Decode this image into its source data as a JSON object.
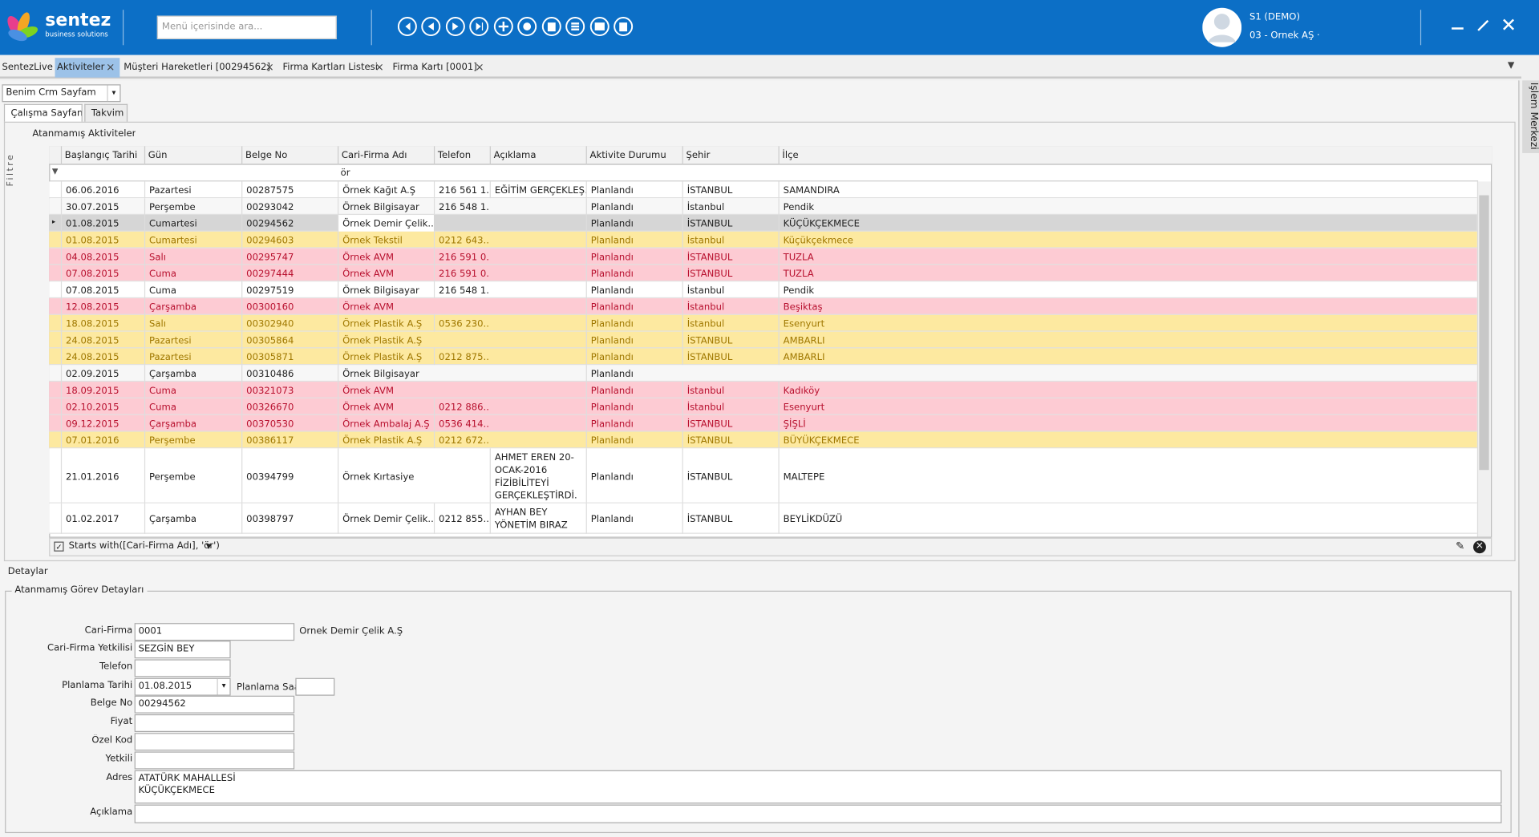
{
  "header": {
    "logo": "sentez",
    "logo_sub": "business solutions",
    "search_placeholder": "Menü içerisinde ara...",
    "user": "S1 (DEMO)",
    "company": "03 - Örnek AŞ ·"
  },
  "tabs": [
    {
      "label": "SentezLive"
    },
    {
      "label": "Aktiviteler",
      "active": true
    },
    {
      "label": "Müşteri Hareketleri [00294562]"
    },
    {
      "label": "Firma Kartları Listesi"
    },
    {
      "label": "Firma Kartı [0001]"
    }
  ],
  "side_panel": "İşlem Merkezi",
  "page_selector": "Benim Crm Sayfam",
  "sub_tabs": [
    {
      "label": "Çalışma Sayfam",
      "active": true
    },
    {
      "label": "Takvim"
    }
  ],
  "filter_panel": "Filtre",
  "grid": {
    "title": "Atanmamış Aktiviteler",
    "columns": [
      "Başlangıç Tarihi",
      "Gün",
      "Belge No",
      "Cari-Firma Adı",
      "Telefon",
      "Açıklama",
      "Aktivite Durumu",
      "Şehir",
      "İlçe"
    ],
    "filter_value": "ör",
    "rows": [
      {
        "cells": [
          "06.06.2016",
          "Pazartesi",
          "00287575",
          "Örnek Kağıt A.Ş",
          "216 561 1...",
          "EĞİTİM GERÇEKLEŞ...",
          "Planlandı",
          "İSTANBUL",
          "SAMANDIRA"
        ],
        "color": "#ffffff",
        "text_color": "#222222"
      },
      {
        "cells": [
          "30.07.2015",
          "Perşembe",
          "00293042",
          "Örnek Bilgisayar",
          "216 548 1...",
          null,
          "Planlandı",
          "İstanbul",
          "Pendik"
        ],
        "color": "#f7f7f7",
        "text_color": "#222222"
      },
      {
        "cells": [
          "01.08.2015",
          "Cumartesi",
          "00294562",
          "Örnek Demir Çelik...",
          null,
          null,
          "Planlandı",
          "İSTANBUL",
          "KÜÇÜKÇEKMECE"
        ],
        "color": "#d6d6d6",
        "text_color": "#222222",
        "selected": true
      },
      {
        "cells": [
          "01.08.2015",
          "Cumartesi",
          "00294603",
          "Örnek Tekstil",
          "0212 643...",
          null,
          "Planlandı",
          "İstanbul",
          "Küçükçekmece"
        ],
        "color": "#fde9a0",
        "text_color": "#a07800"
      },
      {
        "cells": [
          "04.08.2015",
          "Salı",
          "00295747",
          "Örnek AVM",
          "216 591 0...",
          null,
          "Planlandı",
          "İSTANBUL",
          "TUZLA"
        ],
        "color": "#fdcbd3",
        "text_color": "#b8102e"
      },
      {
        "cells": [
          "07.08.2015",
          "Cuma",
          "00297444",
          "Örnek AVM",
          "216 591 0...",
          null,
          "Planlandı",
          "İSTANBUL",
          "TUZLA"
        ],
        "color": "#fdcbd3",
        "text_color": "#b8102e"
      },
      {
        "cells": [
          "07.08.2015",
          "Cuma",
          "00297519",
          "Örnek Bilgisayar",
          "216 548 1...",
          null,
          "Planlandı",
          "İstanbul",
          "Pendik"
        ],
        "color": "#ffffff",
        "text_color": "#222222"
      },
      {
        "cells": [
          "12.08.2015",
          "Çarşamba",
          "00300160",
          "Örnek AVM",
          null,
          null,
          "Planlandı",
          "İstanbul",
          "Beşiktaş"
        ],
        "color": "#fdcbd3",
        "text_color": "#b8102e"
      },
      {
        "cells": [
          "18.08.2015",
          "Salı",
          "00302940",
          "Örnek Plastik A.Ş",
          "0536 230...",
          null,
          "Planlandı",
          "İstanbul",
          "Esenyurt"
        ],
        "color": "#fde9a0",
        "text_color": "#a07800"
      },
      {
        "cells": [
          "24.08.2015",
          "Pazartesi",
          "00305864",
          "Örnek Plastik A.Ş",
          null,
          null,
          "Planlandı",
          "İSTANBUL",
          "AMBARLI"
        ],
        "color": "#fde9a0",
        "text_color": "#a07800"
      },
      {
        "cells": [
          "24.08.2015",
          "Pazartesi",
          "00305871",
          "Örnek Plastik A.Ş",
          "0212 875...",
          null,
          "Planlandı",
          "İSTANBUL",
          "AMBARLI"
        ],
        "color": "#fde9a0",
        "text_color": "#a07800"
      },
      {
        "cells": [
          "02.09.2015",
          "Çarşamba",
          "00310486",
          "Örnek Bilgisayar",
          null,
          null,
          "Planlandı",
          null,
          null
        ],
        "color": "#f7f7f7",
        "text_color": "#222222"
      },
      {
        "cells": [
          "18.09.2015",
          "Cuma",
          "00321073",
          "Örnek AVM",
          null,
          null,
          "Planlandı",
          "İstanbul",
          "Kadıköy"
        ],
        "color": "#fdcbd3",
        "text_color": "#b8102e"
      },
      {
        "cells": [
          "02.10.2015",
          "Cuma",
          "00326670",
          "Örnek AVM",
          "0212 886...",
          null,
          "Planlandı",
          "İstanbul",
          "Esenyurt"
        ],
        "color": "#fdcbd3",
        "text_color": "#b8102e"
      },
      {
        "cells": [
          "09.12.2015",
          "Çarşamba",
          "00370530",
          "Örnek Ambalaj A.Ş",
          "0536 414...",
          null,
          "Planlandı",
          "İSTANBUL",
          "ŞİŞLİ"
        ],
        "color": "#fdcbd3",
        "text_color": "#b8102e"
      },
      {
        "cells": [
          "07.01.2016",
          "Perşembe",
          "00386117",
          "Örnek Plastik A.Ş",
          "0212 672...",
          null,
          "Planlandı",
          "İSTANBUL",
          "BÜYÜKÇEKMECE"
        ],
        "color": "#fde9a0",
        "text_color": "#a07800"
      },
      {
        "cells": [
          "21.01.2016",
          "Perşembe",
          "00394799",
          "Örnek Kırtasiye",
          null,
          "AHMET EREN 20-OCAK-2016 FİZİBİLİTEYİ GERÇEKLEŞTİRDİ.",
          "Planlandı",
          "İSTANBUL",
          "MALTEPE"
        ],
        "color": "#ffffff",
        "text_color": "#222222",
        "tall": true
      },
      {
        "cells": [
          "01.02.2017",
          "Çarşamba",
          "00398797",
          "Örnek Demir Çelik...",
          "0212 855...",
          "AYHAN BEY YÖNETİM BIRAZ",
          "Planlandı",
          "İSTANBUL",
          "BEYLİKDÜZÜ"
        ],
        "color": "#ffffff",
        "text_color": "#222222",
        "tall": true
      }
    ],
    "filter_text": "Starts with([Cari-Firma Adı], 'ör')"
  },
  "details": {
    "title": "Detaylar",
    "group": "Atanmamış Görev Detayları",
    "time_label": "Planlama Saat",
    "fields": [
      {
        "label": "Cari-Firma",
        "value": "0001",
        "company_name": "Örnek Demir Çelik A.Ş"
      },
      {
        "label": "Cari-Firma Yetkilisi",
        "value": "SEZGİN BEY"
      },
      {
        "label": "Telefon"
      },
      {
        "label": "Planlama Tarihi",
        "value": "01.08.2015"
      },
      {
        "label": "Belge No",
        "value": "00294562"
      },
      {
        "label": "Fiyat"
      },
      {
        "label": "Özel Kod"
      },
      {
        "label": "Yetkili"
      },
      {
        "label": "Adres",
        "value": [
          "ATATÜRK MAHALLESİ",
          "KÜÇÜKÇEKMECE"
        ]
      },
      {
        "label": "Açıklama"
      }
    ]
  }
}
